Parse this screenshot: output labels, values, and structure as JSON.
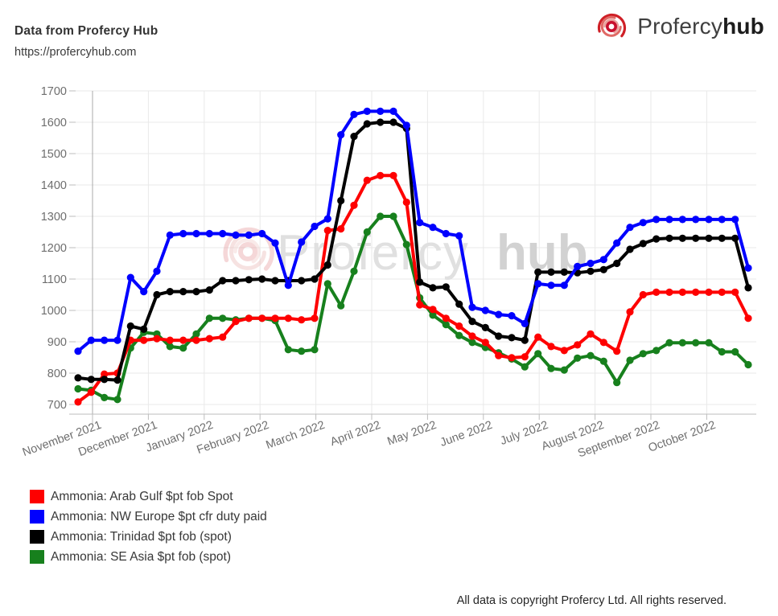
{
  "header": {
    "title": "Data from Profercy Hub",
    "url": "https://profercyhub.com"
  },
  "logo": {
    "brand_primary": "Profercy",
    "brand_suffix": "hub"
  },
  "watermark": {
    "text_primary": "Profercy",
    "text_suffix": "hub"
  },
  "footer": {
    "copyright": "All data is copyright Profercy Ltd. All rights reserved."
  },
  "chart_data": {
    "type": "line",
    "title": "",
    "xlabel": "",
    "ylabel": "",
    "ylim": [
      700,
      1700
    ],
    "y_ticks": [
      700,
      800,
      900,
      1000,
      1100,
      1200,
      1300,
      1400,
      1500,
      1600,
      1700
    ],
    "x_tick_labels": [
      "November 2021",
      "December 2021",
      "January 2022",
      "February 2022",
      "March 2022",
      "April 2022",
      "May 2022",
      "June 2022",
      "July 2022",
      "August 2022",
      "September 2022",
      "October 2022"
    ],
    "grid": true,
    "markers": true,
    "legend_position": "bottom-left",
    "draw_order": [
      3,
      0,
      2,
      1
    ],
    "series": [
      {
        "name": "Ammonia: Arab Gulf $pt fob Spot",
        "color": "#fe0000",
        "values": [
          708,
          739,
          797,
          800,
          905,
          905,
          910,
          905,
          905,
          905,
          910,
          915,
          965,
          975,
          975,
          975,
          975,
          970,
          975,
          1255,
          1260,
          1335,
          1415,
          1430,
          1430,
          1345,
          1018,
          1003,
          975,
          950,
          918,
          898,
          856,
          849,
          852,
          915,
          885,
          872,
          890,
          925,
          898,
          870,
          995,
          1050,
          1058,
          1058,
          1058,
          1058,
          1058,
          1058,
          1058,
          975
        ]
      },
      {
        "name": "Ammonia: NW Europe $pt cfr duty paid",
        "color": "#0000fe",
        "values": [
          870,
          905,
          905,
          905,
          1105,
          1060,
          1125,
          1240,
          1245,
          1245,
          1245,
          1245,
          1240,
          1240,
          1245,
          1215,
          1080,
          1218,
          1268,
          1292,
          1560,
          1625,
          1635,
          1635,
          1635,
          1590,
          1280,
          1265,
          1245,
          1238,
          1010,
          1000,
          987,
          983,
          958,
          1085,
          1080,
          1080,
          1140,
          1150,
          1162,
          1215,
          1265,
          1280,
          1290,
          1290,
          1290,
          1290,
          1290,
          1290,
          1290,
          1135
        ]
      },
      {
        "name": "Ammonia: Trinidad $pt fob (spot)",
        "color": "#000000",
        "values": [
          785,
          780,
          780,
          778,
          950,
          940,
          1050,
          1060,
          1060,
          1060,
          1065,
          1095,
          1095,
          1098,
          1100,
          1095,
          1095,
          1095,
          1100,
          1145,
          1350,
          1555,
          1595,
          1600,
          1600,
          1580,
          1090,
          1072,
          1075,
          1020,
          965,
          945,
          918,
          913,
          905,
          1122,
          1122,
          1122,
          1120,
          1125,
          1130,
          1150,
          1195,
          1213,
          1228,
          1230,
          1230,
          1230,
          1230,
          1230,
          1230,
          1072
        ]
      },
      {
        "name": "Ammonia: SE Asia $pt fob (spot)",
        "color": "#17801d",
        "values": [
          750,
          745,
          722,
          716,
          880,
          930,
          925,
          885,
          880,
          925,
          975,
          975,
          970,
          975,
          975,
          968,
          875,
          870,
          875,
          1085,
          1015,
          1125,
          1250,
          1300,
          1300,
          1210,
          1040,
          985,
          955,
          920,
          898,
          882,
          865,
          845,
          820,
          862,
          815,
          810,
          848,
          856,
          838,
          770,
          841,
          862,
          872,
          897,
          897,
          897,
          897,
          868,
          868,
          827
        ]
      }
    ]
  }
}
